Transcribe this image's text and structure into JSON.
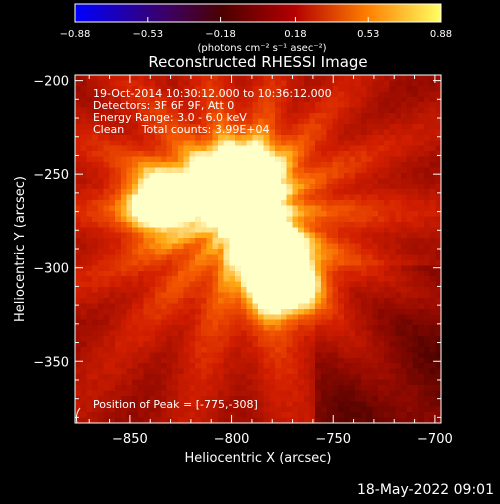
{
  "chart_data": {
    "type": "heatmap",
    "title": "Reconstructed RHESSI Image",
    "xlabel": "Heliocentric X (arcsec)",
    "ylabel": "Heliocentric Y (arcsec)",
    "xlim": [
      -877,
      -697
    ],
    "ylim": [
      -383,
      -197
    ],
    "x_ticks": [
      -850,
      -800,
      -750,
      -700
    ],
    "y_ticks": [
      -200,
      -250,
      -300,
      -350
    ],
    "x_tick_labels": [
      "−850",
      "−800",
      "−750",
      "−700"
    ],
    "y_tick_labels": [
      "−200",
      "−250",
      "−300",
      "−350"
    ],
    "colorbar": {
      "min": -0.88,
      "max": 0.88,
      "tick_values": [
        -0.88,
        -0.53,
        -0.18,
        0.18,
        0.53,
        0.88
      ],
      "tick_labels": [
        "−0.88",
        "−0.53",
        "−0.18",
        "0.18",
        "0.53",
        "0.88"
      ],
      "units_label": "(photons cm⁻² s⁻¹ asec⁻²)",
      "colormap": "rhessi-std-gamma"
    },
    "annotations": [
      "19-Oct-2014 10:30:12.000 to 10:36:12.000",
      "Detectors: 3F 6F 9F, Att 0",
      "Energy Range: 3.0 - 6.0 keV",
      "Clean     Total counts: 3.99E+04",
      "Position of Peak = [-775,-308]"
    ],
    "sources": [
      {
        "x": -775,
        "y": -308,
        "peak": 1.0
      },
      {
        "x": -805,
        "y": -255,
        "peak": 0.8
      },
      {
        "x": -790,
        "y": -250,
        "peak": 0.75
      },
      {
        "x": -835,
        "y": -265,
        "peak": 0.8
      },
      {
        "x": -782,
        "y": -290,
        "peak": 0.55
      },
      {
        "x": -790,
        "y": -275,
        "peak": 0.35
      }
    ],
    "peak_position": [
      -775,
      -308
    ],
    "footer_date": "18-May-2022 09:01"
  }
}
